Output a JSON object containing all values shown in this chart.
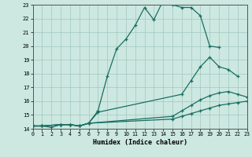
{
  "title": "",
  "xlabel": "Humidex (Indice chaleur)",
  "xlim": [
    0,
    23
  ],
  "ylim": [
    14,
    23
  ],
  "xticks": [
    0,
    1,
    2,
    3,
    4,
    5,
    6,
    7,
    8,
    9,
    10,
    11,
    12,
    13,
    14,
    15,
    16,
    17,
    18,
    19,
    20,
    21,
    22,
    23
  ],
  "yticks": [
    14,
    15,
    16,
    17,
    18,
    19,
    20,
    21,
    22,
    23
  ],
  "bg_color": "#cce8e0",
  "line_color": "#1a6e62",
  "grid_color": "#a0c8c0",
  "lines": [
    {
      "x": [
        0,
        1,
        2,
        3,
        4,
        5,
        6,
        7,
        8,
        9,
        10,
        11,
        12,
        13,
        14,
        15,
        16,
        17,
        18,
        19,
        20
      ],
      "y": [
        14.2,
        14.2,
        14.1,
        14.3,
        14.3,
        14.2,
        14.4,
        15.3,
        17.8,
        19.8,
        20.5,
        21.5,
        22.8,
        21.9,
        23.3,
        23.0,
        22.8,
        22.8,
        22.2,
        20.0,
        19.9
      ]
    },
    {
      "x": [
        0,
        1,
        3,
        4,
        5,
        6,
        7,
        16,
        17,
        18,
        19,
        20,
        21,
        22
      ],
      "y": [
        14.2,
        14.2,
        14.3,
        14.3,
        14.2,
        14.4,
        15.2,
        16.5,
        17.5,
        18.5,
        19.2,
        18.5,
        18.3,
        17.8
      ]
    },
    {
      "x": [
        0,
        1,
        3,
        4,
        5,
        6,
        15,
        16,
        17,
        18,
        19,
        20,
        21,
        22,
        23
      ],
      "y": [
        14.2,
        14.2,
        14.3,
        14.3,
        14.2,
        14.4,
        14.9,
        15.3,
        15.7,
        16.1,
        16.4,
        16.6,
        16.7,
        16.5,
        16.3
      ]
    },
    {
      "x": [
        0,
        1,
        3,
        4,
        5,
        6,
        15,
        16,
        17,
        18,
        19,
        20,
        21,
        22,
        23
      ],
      "y": [
        14.2,
        14.2,
        14.3,
        14.3,
        14.2,
        14.4,
        14.7,
        14.9,
        15.1,
        15.3,
        15.5,
        15.7,
        15.8,
        15.9,
        16.0
      ]
    }
  ]
}
